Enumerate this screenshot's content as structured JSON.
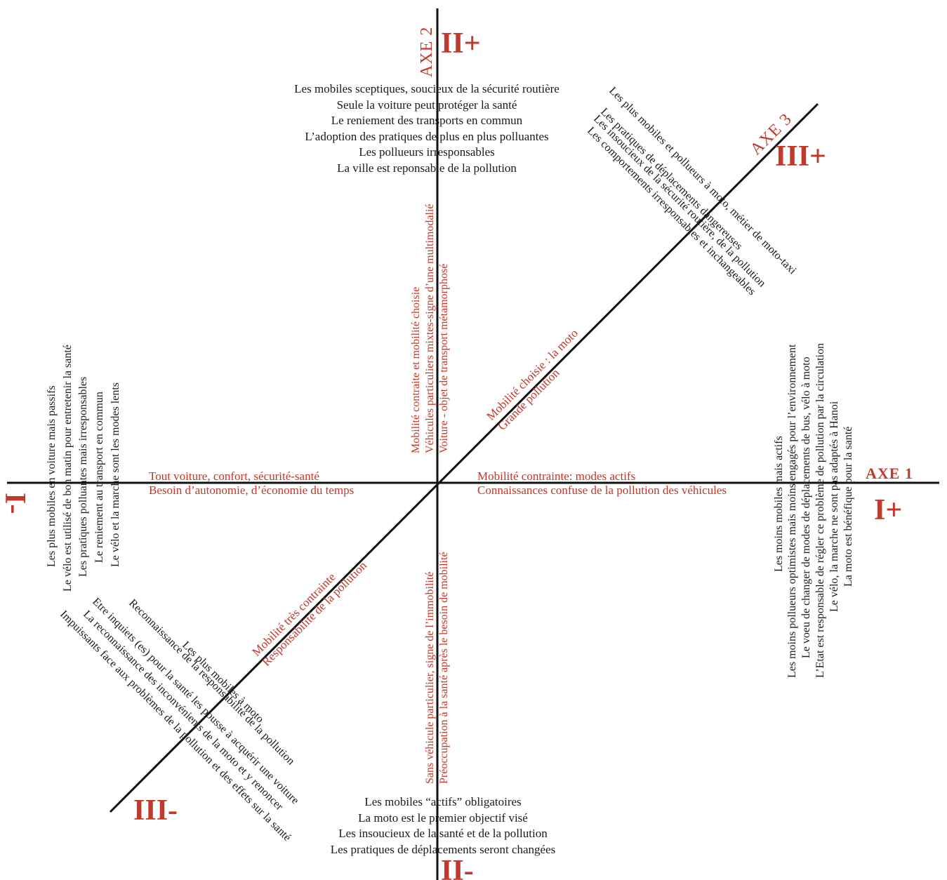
{
  "axes": {
    "axe1": "AXE 1",
    "axe2": "AXE 2",
    "axe3": "AXE 3"
  },
  "poles": {
    "i_plus": "I+",
    "i_minus": "I-",
    "ii_plus": "II+",
    "ii_minus": "II-",
    "iii_plus": "III+",
    "iii_minus": "III-"
  },
  "top_list": [
    "Les mobiles sceptiques, soucieux de la sécurité routière",
    "Seule la voiture peut protéger la santé",
    "Le reniement des transports en commun",
    "L’adoption des pratiques de plus en plus polluantes",
    "Les pollueurs irresponsables",
    "La ville est reponsable de la pollution"
  ],
  "bottom_list": [
    "Les mobiles “actifs” obligatoires",
    "La moto est le premier objectif visé",
    "Les insoucieux de la santé et de la pollution",
    "Les pratiques de déplacements seront changées"
  ],
  "left_list": [
    "Les plus mobiles en voiture mais passifs",
    "Le vélo est utilisé de bon matin pour entretenir la santé",
    "Les pratiques polluantes mais irresponsables",
    "Le reniement au transport en commun",
    "Le vélo et la marche sont les modes lents"
  ],
  "right_list": [
    "Les moins mobiles mais actifs",
    "Les moins pollueurs optimistes mais moins engagés pour l’environnement",
    "Le voeu de changer de modes de déplacements de bus, vélo à moto",
    "L’Etat est responsable de régler ce problème de pollution par la circulation",
    "Le vélo, la marche ne sont pas adaptés à Hanoi",
    "La moto est bénéfique pour la santé"
  ],
  "upper_right_list": [
    "Les plus mobiles et pollueurs à moto, métier de moto-taxi",
    "Les pratiques de déplacements dangereuses",
    "Les insoucieux de la sécurité routière, de la pollution",
    "Les comportements irresponsables et inchangeables"
  ],
  "lower_left_list": [
    "Les plus mobiles à moto",
    "Reconnaissance de la responsabilité de la pollution",
    "Etre inquiets (es) pour la santé les pousse à acquérir une voiture",
    "La reconnaissance des inconvénients de la moto et y renoncer",
    "Impuissants face aux problèmes de la pollution et des effets sur la santé"
  ],
  "axis_labels": {
    "left": [
      "Tout voiture, confort, sécurité-santé",
      "Besoin d’autonomie, d’économie du temps"
    ],
    "right": [
      "Mobilité contrainte: modes actifs",
      "Connaissances confuse de la pollution des véhicules"
    ],
    "up": [
      "Mobilité contraite et mobilité choisie",
      "Véhicules particuliers mixtes-signe d’une multimodalié",
      "Voiture - objet de transport métamorphosé"
    ],
    "down": [
      "Sans véhicule particulier, signe de l’immobilité",
      "Préoccupation à la santé après le besoin de mobilité"
    ],
    "diag_up": [
      "Mobilité choisie : la moto",
      "Grande pollution"
    ],
    "diag_down": [
      "Mobilité très contrainte",
      "Responsabilité de la pollution"
    ]
  }
}
